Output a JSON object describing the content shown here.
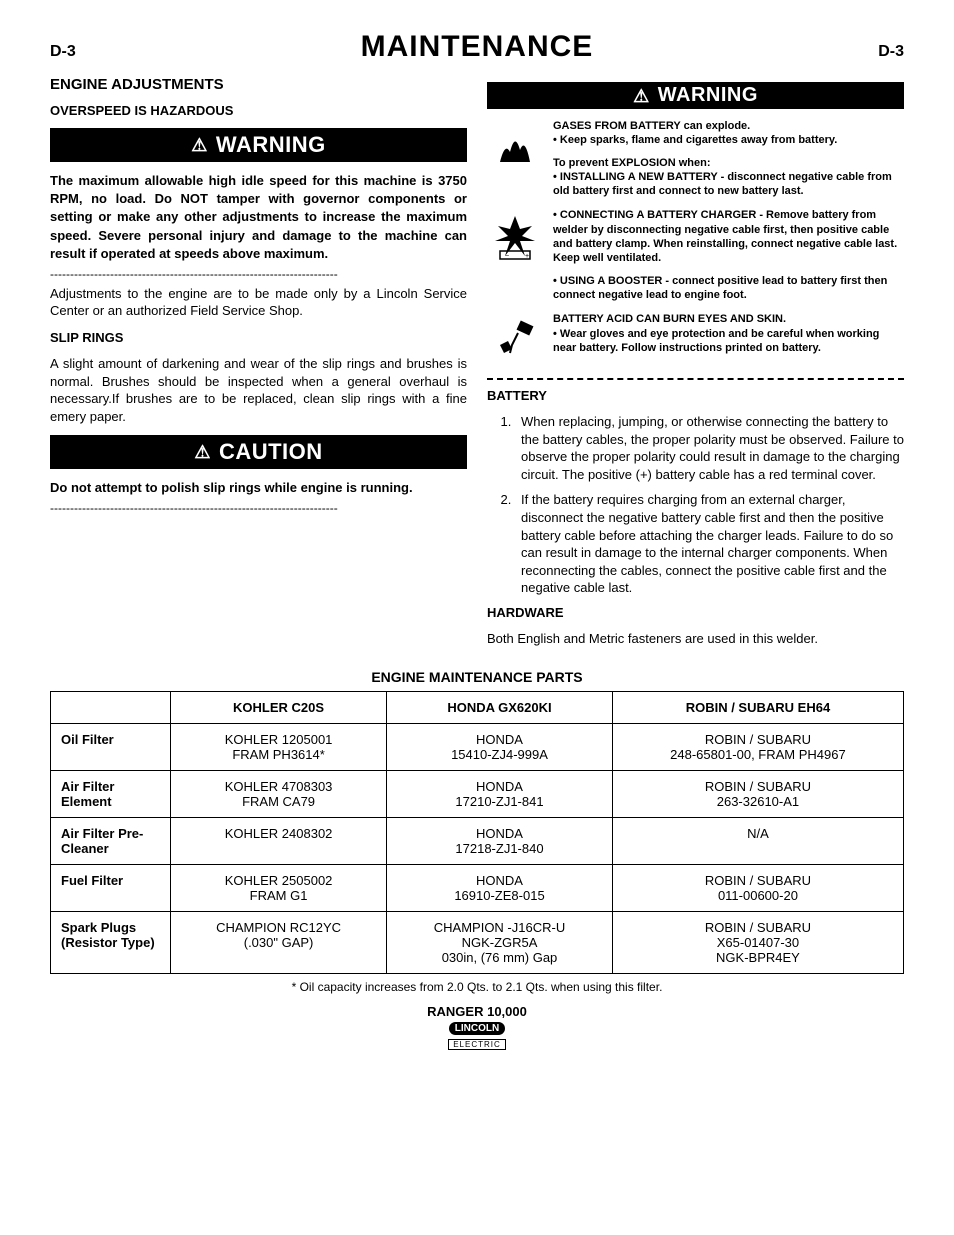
{
  "header": {
    "left": "D-3",
    "title": "MAINTENANCE",
    "right": "D-3"
  },
  "left_col": {
    "engine_adj_h": "ENGINE ADJUSTMENTS",
    "overspeed_h": "OVERSPEED IS HAZARDOUS",
    "warning_label": "WARNING",
    "warning_body": "The maximum allowable high idle speed for this machine is 3750 RPM, no load.  Do NOT tamper with governor components or setting or make any other adjustments to increase the maximum speed.  Severe personal injury and damage to the machine can result if operated at speeds above maximum.",
    "divider": "------------------------------------------------------------------------",
    "adjust_body": "Adjustments to the engine are to be made only by a Lincoln Service Center or an authorized Field Service Shop.",
    "slip_h": "SLIP RINGS",
    "slip_body": "A slight amount of darkening and wear of the slip rings and brushes is normal. Brushes should be inspected when a general overhaul is necessary.If brushes are to be replaced, clean slip rings with a fine emery paper.",
    "caution_label": "CAUTION",
    "caution_body": "Do not attempt to polish slip rings while engine is running."
  },
  "right_col": {
    "warning_label": "WARNING",
    "gases": {
      "l1": "GASES FROM BATTERY can explode.",
      "l2": "•  Keep sparks, flame and cigarettes away from battery.",
      "l3": "To prevent EXPLOSION when:",
      "l4": "•  INSTALLING A NEW BATTERY -  disconnect negative cable from old battery first and connect to new battery last."
    },
    "charger": "•  CONNECTING A BATTERY CHARGER - Remove battery from welder by disconnecting negative cable first, then positive cable and battery clamp.  When reinstalling, connect negative cable last.  Keep well ventilated.",
    "booster": "•  USING A BOOSTER - connect positive lead to battery first then connect negative lead to engine foot.",
    "acid": {
      "l1": "BATTERY ACID CAN BURN EYES AND SKIN.",
      "l2": "• Wear gloves and eye protection and be careful when working near battery.  Follow instructions printed on battery."
    },
    "battery_h": "BATTERY",
    "batt_item1": "When replacing, jumping, or otherwise connecting the battery to the battery cables, the proper polarity must be observed. Failure to observe the proper polarity could result in damage to the charging circuit. The positive (+) battery cable has a red terminal cover.",
    "batt_item2": "If the battery requires charging from an external charger, disconnect the negative battery cable first and then the positive battery cable before attaching the charger leads. Failure to do so can result in damage to the internal charger components. When reconnecting the cables, connect the positive cable first and the negative cable last.",
    "hardware_h": "HARDWARE",
    "hardware_body": "Both English and Metric fasteners are used in this welder."
  },
  "table": {
    "title": "ENGINE MAINTENANCE PARTS",
    "headers": [
      "",
      "KOHLER C20S",
      "HONDA GX620KI",
      "ROBIN / SUBARU EH64"
    ],
    "rows": [
      {
        "label": "Oil Filter",
        "c1": "KOHLER 1205001\nFRAM PH3614*",
        "c2": "HONDA\n15410-ZJ4-999A",
        "c3": "ROBIN / SUBARU\n248-65801-00, FRAM PH4967"
      },
      {
        "label": "Air Filter Element",
        "c1": "KOHLER 4708303\nFRAM CA79",
        "c2": "HONDA\n17210-ZJ1-841",
        "c3": "ROBIN / SUBARU\n263-32610-A1"
      },
      {
        "label": "Air Filter Pre-Cleaner",
        "c1": "KOHLER 2408302",
        "c2": "HONDA\n17218-ZJ1-840",
        "c3": "N/A"
      },
      {
        "label": "Fuel Filter",
        "c1": "KOHLER 2505002\nFRAM G1",
        "c2": "HONDA\n16910-ZE8-015",
        "c3": "ROBIN / SUBARU\n011-00600-20"
      },
      {
        "label": "Spark Plugs (Resistor Type)",
        "c1": "CHAMPION RC12YC\n(.030\" GAP)",
        "c2": "CHAMPION -J16CR-U\nNGK-ZGR5A\n030in, (76 mm) Gap",
        "c3": "ROBIN / SUBARU\nX65-01407-30\nNGK-BPR4EY"
      }
    ],
    "footnote": "*   Oil capacity increases from 2.0 Qts. to 2.1 Qts. when using this filter."
  },
  "footer": {
    "model": "RANGER 10,000",
    "brand": "LINCOLN",
    "sub": "ELECTRIC"
  },
  "colors": {
    "bg": "#ffffff",
    "text": "#000000",
    "bar_bg": "#000000",
    "bar_fg": "#ffffff"
  }
}
